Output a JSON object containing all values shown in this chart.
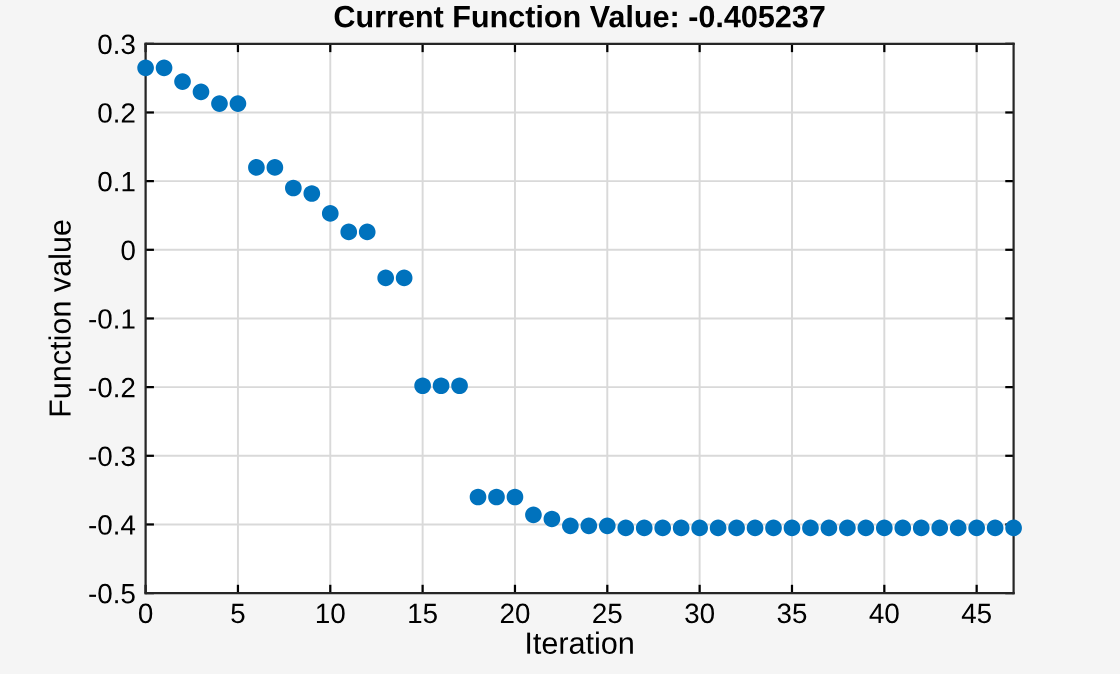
{
  "chart_data": {
    "type": "scatter",
    "title": "Current Function Value: -0.405237",
    "xlabel": "Iteration",
    "ylabel": "Function value",
    "x": [
      0,
      1,
      2,
      3,
      4,
      5,
      6,
      7,
      8,
      9,
      10,
      11,
      12,
      13,
      14,
      15,
      16,
      17,
      18,
      19,
      20,
      21,
      22,
      23,
      24,
      25,
      26,
      27,
      28,
      29,
      30,
      31,
      32,
      33,
      34,
      35,
      36,
      37,
      38,
      39,
      40,
      41,
      42,
      43,
      44,
      45,
      46,
      47
    ],
    "series": [
      {
        "color": "#0072bd",
        "values": [
          0.265,
          0.265,
          0.245,
          0.23,
          0.213,
          0.213,
          0.12,
          0.12,
          0.09,
          0.082,
          0.053,
          0.026,
          0.026,
          -0.041,
          -0.041,
          -0.198,
          -0.198,
          -0.198,
          -0.36,
          -0.36,
          -0.36,
          -0.386,
          -0.392,
          -0.402,
          -0.402,
          -0.402,
          -0.405,
          -0.405,
          -0.405,
          -0.405,
          -0.405,
          -0.405,
          -0.405,
          -0.405,
          -0.405,
          -0.405,
          -0.405,
          -0.405,
          -0.405,
          -0.405,
          -0.405,
          -0.405,
          -0.405,
          -0.405,
          -0.405,
          -0.405,
          -0.405,
          -0.405
        ]
      }
    ],
    "xlim": [
      0,
      47
    ],
    "xticks": [
      0,
      5,
      10,
      15,
      20,
      25,
      30,
      35,
      40,
      45
    ],
    "ylim": [
      -0.5,
      0.3
    ],
    "yticks": [
      -0.5,
      -0.4,
      -0.3,
      -0.2,
      -0.1,
      0,
      0.1,
      0.2,
      0.3
    ],
    "grid": true,
    "marker": "circle"
  }
}
